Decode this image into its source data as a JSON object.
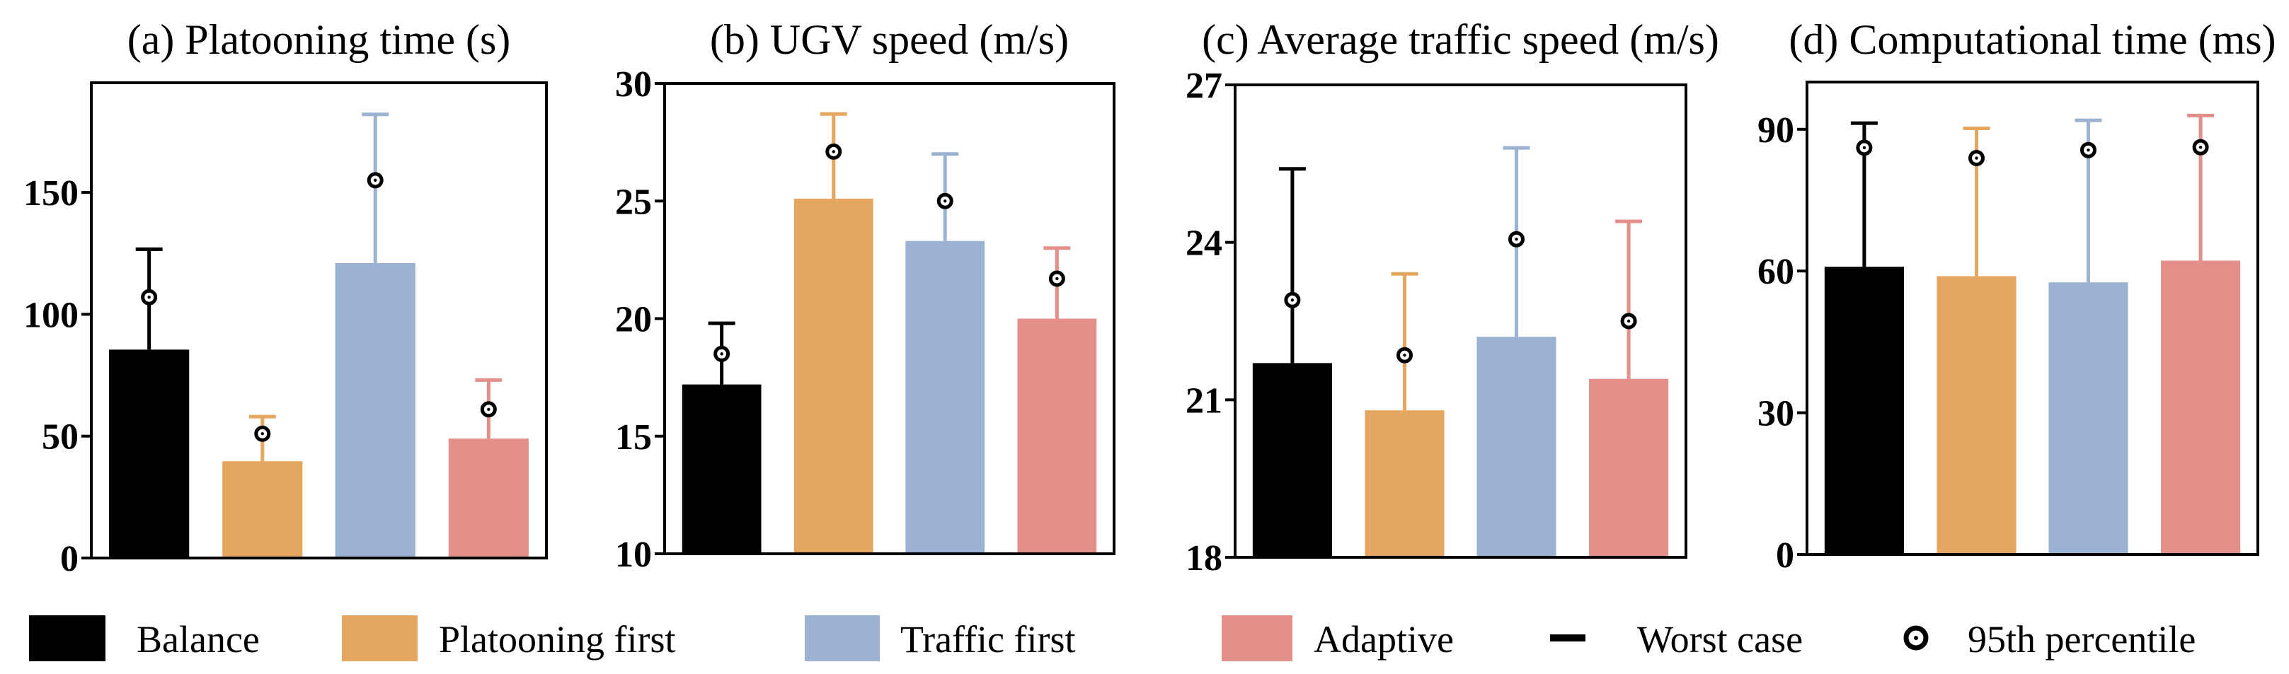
{
  "legend": {
    "items": [
      {
        "label": "Balance",
        "color": "#000000"
      },
      {
        "label": "Platooning first",
        "color": "#E5A660"
      },
      {
        "label": "Traffic first",
        "color": "#9BB2D2"
      },
      {
        "label": "Adaptive",
        "color": "#E3908A"
      }
    ],
    "worst_case_label": "Worst case",
    "percentile_label": "95th percentile"
  },
  "chart_data": [
    {
      "type": "bar",
      "title": "(a) Platooning time (s)",
      "categories": [
        "Balance",
        "Platooning first",
        "Traffic first",
        "Adaptive"
      ],
      "ylim": [
        0,
        195
      ],
      "yticks": [
        0,
        50,
        100,
        150
      ],
      "values": [
        85.5,
        39.7,
        121,
        49
      ],
      "worst_case": [
        126.7,
        58,
        182,
        73
      ],
      "p95": [
        107,
        51,
        155,
        61
      ]
    },
    {
      "type": "bar",
      "title": "(b) UGV speed (m/s)",
      "categories": [
        "Balance",
        "Platooning first",
        "Traffic first",
        "Adaptive"
      ],
      "ylim": [
        10,
        30
      ],
      "yticks": [
        10,
        15,
        20,
        25,
        30
      ],
      "values": [
        17.2,
        25.1,
        23.3,
        20.0
      ],
      "worst_case": [
        19.8,
        28.7,
        27.0,
        23.0
      ],
      "p95": [
        18.5,
        27.1,
        25.0,
        21.7
      ]
    },
    {
      "type": "bar",
      "title": "(c) Average traffic speed (m/s)",
      "categories": [
        "Balance",
        "Platooning first",
        "Traffic first",
        "Adaptive"
      ],
      "ylim": [
        18,
        27
      ],
      "yticks": [
        18,
        21,
        24,
        27
      ],
      "values": [
        21.7,
        20.8,
        22.2,
        21.4
      ],
      "worst_case": [
        25.4,
        23.4,
        25.8,
        24.4
      ],
      "p95": [
        22.9,
        21.85,
        24.06,
        22.5
      ]
    },
    {
      "type": "bar",
      "title": "(d) Computational time (ms)",
      "categories": [
        "Balance",
        "Platooning first",
        "Traffic first",
        "Adaptive"
      ],
      "ylim": [
        0,
        100
      ],
      "yticks": [
        0,
        30,
        60,
        90
      ],
      "values": [
        60.9,
        58.9,
        57.6,
        62.2
      ],
      "worst_case": [
        91.3,
        90.2,
        91.9,
        92.9
      ],
      "p95": [
        86.1,
        83.9,
        85.6,
        86.2
      ]
    }
  ]
}
